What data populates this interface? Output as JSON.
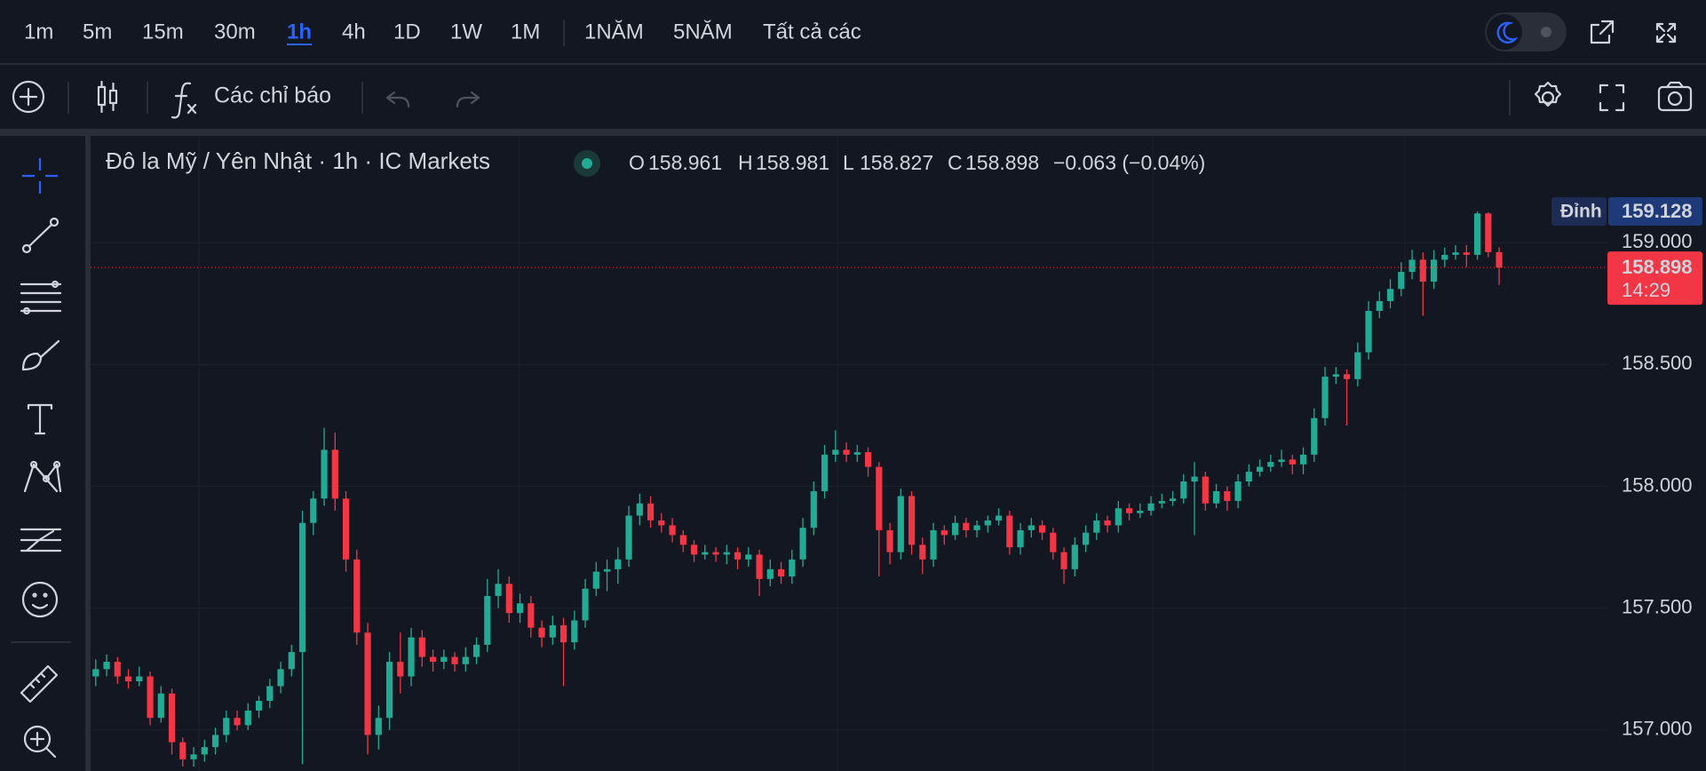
{
  "toolbar": {
    "intervals": [
      "1m",
      "5m",
      "15m",
      "30m",
      "1h",
      "4h",
      "1D",
      "1W",
      "1M"
    ],
    "active_interval": "1h",
    "ranges": [
      "1NĂM",
      "5NĂM",
      "Tất cả các"
    ],
    "indicators": "Các chỉ báo"
  },
  "chart_data": {
    "type": "candlestick",
    "title": "Đô la Mỹ / Yên Nhật · 1h · IC Markets",
    "ohlc_labels": [
      "O",
      "H",
      "L",
      "C"
    ],
    "ohlc": [
      158.961,
      158.981,
      158.827,
      158.898
    ],
    "change_label": "−0.063 (−0.04%)",
    "up_color": "#22ab94",
    "down_color": "#f23645",
    "ylim": [
      156.832,
      159.438
    ],
    "yticks": [
      {
        "value": 157,
        "label": "157.000"
      },
      {
        "value": 157.5,
        "label": "157.500"
      },
      {
        "value": 158,
        "label": "158.000"
      },
      {
        "value": 158.5,
        "label": "158.500"
      },
      {
        "value": 159,
        "label": "159.000"
      }
    ],
    "grid": true,
    "high_marker": {
      "label": "Đỉnh",
      "value": 159.128
    },
    "last_price": {
      "value": 158.898,
      "countdown": "14:29"
    },
    "candles": [
      [
        157.22,
        157.29,
        157.18,
        157.25
      ],
      [
        157.25,
        157.31,
        157.22,
        157.28
      ],
      [
        157.28,
        157.3,
        157.19,
        157.22
      ],
      [
        157.22,
        157.25,
        157.17,
        157.2
      ],
      [
        157.2,
        157.26,
        157.18,
        157.22
      ],
      [
        157.22,
        157.24,
        157.02,
        157.05
      ],
      [
        157.05,
        157.18,
        157.03,
        157.15
      ],
      [
        157.15,
        157.17,
        156.9,
        156.95
      ],
      [
        156.95,
        156.97,
        156.85,
        156.88
      ],
      [
        156.88,
        156.93,
        156.85,
        156.9
      ],
      [
        156.9,
        156.96,
        156.87,
        156.93
      ],
      [
        156.93,
        157.01,
        156.9,
        156.98
      ],
      [
        156.98,
        157.08,
        156.95,
        157.05
      ],
      [
        157.05,
        157.08,
        157.0,
        157.02
      ],
      [
        157.02,
        157.11,
        157.0,
        157.08
      ],
      [
        157.08,
        157.14,
        157.05,
        157.12
      ],
      [
        157.12,
        157.21,
        157.09,
        157.18
      ],
      [
        157.18,
        157.28,
        157.15,
        157.25
      ],
      [
        157.25,
        157.35,
        157.22,
        157.32
      ],
      [
        157.32,
        157.9,
        156.86,
        157.85
      ],
      [
        157.85,
        157.98,
        157.8,
        157.95
      ],
      [
        157.95,
        158.24,
        157.92,
        158.15
      ],
      [
        158.15,
        158.22,
        157.9,
        157.95
      ],
      [
        157.95,
        157.98,
        157.65,
        157.7
      ],
      [
        157.7,
        157.74,
        157.35,
        157.4
      ],
      [
        157.4,
        157.44,
        156.9,
        156.98
      ],
      [
        156.98,
        157.1,
        156.92,
        157.05
      ],
      [
        157.05,
        157.32,
        157.0,
        157.28
      ],
      [
        157.28,
        157.4,
        157.15,
        157.22
      ],
      [
        157.22,
        157.42,
        157.18,
        157.38
      ],
      [
        157.38,
        157.41,
        157.26,
        157.3
      ],
      [
        157.3,
        157.33,
        157.24,
        157.28
      ],
      [
        157.28,
        157.33,
        157.25,
        157.3
      ],
      [
        157.3,
        157.32,
        157.24,
        157.27
      ],
      [
        157.27,
        157.34,
        157.24,
        157.3
      ],
      [
        157.3,
        157.38,
        157.27,
        157.35
      ],
      [
        157.35,
        157.62,
        157.32,
        157.55
      ],
      [
        157.55,
        157.66,
        157.5,
        157.6
      ],
      [
        157.6,
        157.63,
        157.44,
        157.48
      ],
      [
        157.48,
        157.56,
        157.44,
        157.52
      ],
      [
        157.52,
        157.55,
        157.38,
        157.42
      ],
      [
        157.42,
        157.45,
        157.34,
        157.38
      ],
      [
        157.38,
        157.47,
        157.35,
        157.43
      ],
      [
        157.43,
        157.46,
        157.18,
        157.36
      ],
      [
        157.36,
        157.49,
        157.33,
        157.45
      ],
      [
        157.45,
        157.62,
        157.42,
        157.58
      ],
      [
        157.58,
        157.69,
        157.55,
        157.65
      ],
      [
        157.65,
        157.7,
        157.57,
        157.66
      ],
      [
        157.66,
        157.75,
        157.6,
        157.7
      ],
      [
        157.7,
        157.92,
        157.67,
        157.88
      ],
      [
        157.88,
        157.97,
        157.84,
        157.93
      ],
      [
        157.93,
        157.96,
        157.83,
        157.86
      ],
      [
        157.86,
        157.89,
        157.81,
        157.84
      ],
      [
        157.84,
        157.87,
        157.77,
        157.8
      ],
      [
        157.8,
        157.82,
        157.73,
        157.76
      ],
      [
        157.76,
        157.78,
        157.69,
        157.72
      ],
      [
        157.72,
        157.76,
        157.7,
        157.73
      ],
      [
        157.73,
        157.75,
        157.69,
        157.72
      ],
      [
        157.72,
        157.76,
        157.68,
        157.73
      ],
      [
        157.73,
        157.75,
        157.66,
        157.7
      ],
      [
        157.7,
        157.75,
        157.67,
        157.72
      ],
      [
        157.72,
        157.74,
        157.55,
        157.62
      ],
      [
        157.62,
        157.7,
        157.59,
        157.66
      ],
      [
        157.66,
        157.69,
        157.6,
        157.63
      ],
      [
        157.63,
        157.74,
        157.6,
        157.7
      ],
      [
        157.7,
        157.87,
        157.67,
        157.83
      ],
      [
        157.83,
        158.02,
        157.8,
        157.98
      ],
      [
        157.98,
        158.17,
        157.95,
        158.13
      ],
      [
        158.13,
        158.23,
        158.1,
        158.15
      ],
      [
        158.15,
        158.18,
        158.1,
        158.13
      ],
      [
        158.13,
        158.17,
        158.1,
        158.14
      ],
      [
        158.14,
        158.16,
        158.04,
        158.08
      ],
      [
        158.08,
        158.1,
        157.63,
        157.82
      ],
      [
        157.82,
        157.85,
        157.68,
        157.73
      ],
      [
        157.73,
        157.99,
        157.7,
        157.96
      ],
      [
        157.96,
        157.98,
        157.72,
        157.76
      ],
      [
        157.76,
        157.79,
        157.64,
        157.7
      ],
      [
        157.7,
        157.85,
        157.67,
        157.82
      ],
      [
        157.82,
        157.84,
        157.76,
        157.8
      ],
      [
        157.8,
        157.88,
        157.78,
        157.85
      ],
      [
        157.85,
        157.87,
        157.79,
        157.82
      ],
      [
        157.82,
        157.86,
        157.79,
        157.84
      ],
      [
        157.84,
        157.88,
        157.81,
        157.86
      ],
      [
        157.86,
        157.91,
        157.84,
        157.88
      ],
      [
        157.88,
        157.9,
        157.72,
        157.75
      ],
      [
        157.75,
        157.85,
        157.72,
        157.82
      ],
      [
        157.82,
        157.87,
        157.79,
        157.84
      ],
      [
        157.84,
        157.86,
        157.78,
        157.81
      ],
      [
        157.81,
        157.83,
        157.7,
        157.73
      ],
      [
        157.73,
        157.75,
        157.6,
        157.66
      ],
      [
        157.66,
        157.79,
        157.63,
        157.76
      ],
      [
        157.76,
        157.84,
        157.73,
        157.81
      ],
      [
        157.81,
        157.89,
        157.78,
        157.86
      ],
      [
        157.86,
        157.88,
        157.81,
        157.84
      ],
      [
        157.84,
        157.94,
        157.81,
        157.91
      ],
      [
        157.91,
        157.93,
        157.86,
        157.89
      ],
      [
        157.89,
        157.93,
        157.87,
        157.9
      ],
      [
        157.9,
        157.96,
        157.88,
        157.93
      ],
      [
        157.93,
        157.97,
        157.91,
        157.94
      ],
      [
        157.94,
        157.98,
        157.92,
        157.95
      ],
      [
        157.95,
        158.05,
        157.93,
        158.02
      ],
      [
        158.02,
        158.1,
        157.8,
        158.04
      ],
      [
        158.04,
        158.06,
        157.9,
        157.93
      ],
      [
        157.93,
        158.01,
        157.91,
        157.98
      ],
      [
        157.98,
        158.0,
        157.9,
        157.94
      ],
      [
        157.94,
        158.05,
        157.91,
        158.02
      ],
      [
        158.02,
        158.09,
        158.0,
        158.06
      ],
      [
        158.06,
        158.11,
        158.04,
        158.08
      ],
      [
        158.08,
        158.13,
        158.06,
        158.1
      ],
      [
        158.1,
        158.15,
        158.08,
        158.11
      ],
      [
        158.11,
        158.13,
        158.05,
        158.09
      ],
      [
        158.09,
        158.16,
        158.05,
        158.13
      ],
      [
        158.13,
        158.32,
        158.1,
        158.28
      ],
      [
        158.28,
        158.49,
        158.25,
        158.45
      ],
      [
        158.45,
        158.49,
        158.42,
        158.46
      ],
      [
        158.46,
        158.48,
        158.25,
        158.44
      ],
      [
        158.44,
        158.59,
        158.41,
        158.55
      ],
      [
        158.55,
        158.76,
        158.52,
        158.72
      ],
      [
        158.72,
        158.8,
        158.69,
        158.76
      ],
      [
        158.76,
        158.85,
        158.73,
        158.81
      ],
      [
        158.81,
        158.92,
        158.78,
        158.88
      ],
      [
        158.88,
        158.97,
        158.85,
        158.93
      ],
      [
        158.93,
        158.96,
        158.7,
        158.84
      ],
      [
        158.84,
        158.97,
        158.81,
        158.93
      ],
      [
        158.93,
        158.98,
        158.9,
        158.95
      ],
      [
        158.95,
        158.99,
        158.93,
        158.96
      ],
      [
        158.96,
        158.99,
        158.9,
        158.95
      ],
      [
        158.95,
        159.128,
        158.93,
        159.12
      ],
      [
        159.12,
        159.125,
        158.94,
        158.961
      ],
      [
        158.961,
        158.981,
        158.827,
        158.898
      ]
    ]
  }
}
